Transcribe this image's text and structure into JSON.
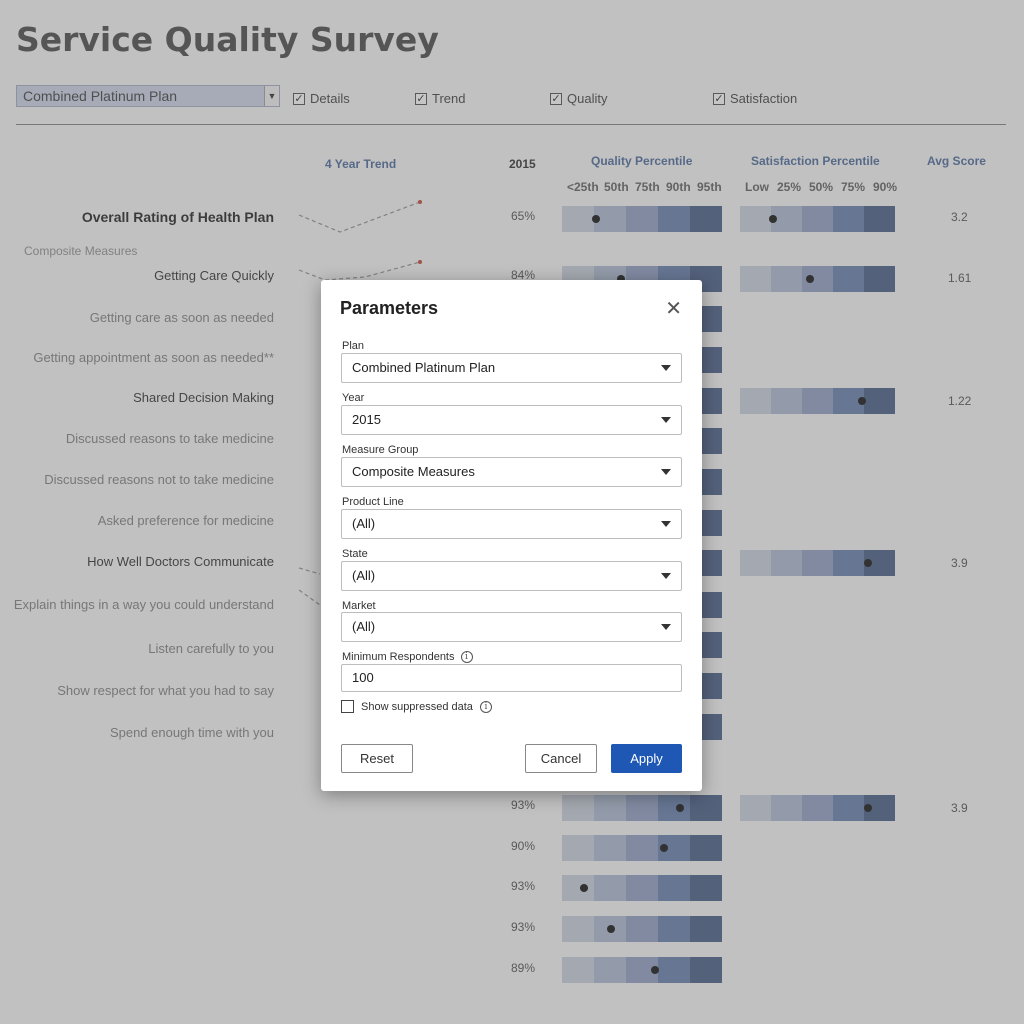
{
  "dashboard": {
    "title": "Service Quality Survey",
    "plan_select_value": "Combined Platinum Plan",
    "checkboxes": [
      "Details",
      "Trend",
      "Quality",
      "Satisfaction"
    ],
    "headers": {
      "trend": "4 Year Trend",
      "year": "2015",
      "quality": "Quality Percentile",
      "satisfaction": "Satisfaction Percentile",
      "avg": "Avg Score"
    },
    "quality_ticks": [
      "<25th",
      "50th",
      "75th",
      "90th",
      "95th"
    ],
    "satisfaction_ticks": [
      "Low",
      "25%",
      "50%",
      "75%",
      "90%"
    ],
    "group_label": "Composite Measures",
    "rows": [
      {
        "label": "Overall Rating of Health Plan",
        "pct": "65%",
        "avg": "3.2"
      },
      {
        "label": "Getting Care Quickly",
        "pct": "84%",
        "avg": "1.61"
      },
      {
        "label": "Getting care as soon as needed",
        "pct": "",
        "avg": ""
      },
      {
        "label": "Getting appointment as soon as needed**",
        "pct": "",
        "avg": ""
      },
      {
        "label": "Shared Decision Making",
        "pct": "",
        "avg": "1.22"
      },
      {
        "label": "Discussed reasons to take medicine",
        "pct": "",
        "avg": ""
      },
      {
        "label": "Discussed reasons not to take medicine",
        "pct": "",
        "avg": ""
      },
      {
        "label": "Asked preference for medicine",
        "pct": "",
        "avg": ""
      },
      {
        "label": "How Well Doctors Communicate",
        "pct": "",
        "avg": "3.9"
      },
      {
        "label": "Explain things in a way you could understand",
        "pct": "",
        "avg": ""
      },
      {
        "label": "Listen carefully to you",
        "pct": "",
        "avg": ""
      },
      {
        "label": "Show respect for what you had to say",
        "pct": "",
        "avg": ""
      },
      {
        "label": "Spend enough time with you",
        "pct": "",
        "avg": ""
      },
      {
        "label": "",
        "pct": "93%",
        "avg": "3.9"
      },
      {
        "label": "",
        "pct": "90%",
        "avg": ""
      },
      {
        "label": "",
        "pct": "93%",
        "avg": ""
      },
      {
        "label": "",
        "pct": "93%",
        "avg": ""
      },
      {
        "label": "",
        "pct": "89%",
        "avg": ""
      }
    ]
  },
  "modal": {
    "title": "Parameters",
    "fields": [
      {
        "label": "Plan",
        "value": "Combined Platinum Plan"
      },
      {
        "label": "Year",
        "value": "2015"
      },
      {
        "label": "Measure Group",
        "value": "Composite Measures"
      },
      {
        "label": "Product Line",
        "value": "(All)"
      },
      {
        "label": "State",
        "value": "(All)"
      },
      {
        "label": "Market",
        "value": "(All)"
      }
    ],
    "min_respondents": {
      "label": "Minimum Respondents",
      "value": "100"
    },
    "suppress_label": "Show suppressed data",
    "buttons": {
      "reset": "Reset",
      "cancel": "Cancel",
      "apply": "Apply"
    }
  },
  "colors": {
    "accent": "#1f57b5",
    "strip_shades": [
      "#c5cbda",
      "#a8b5d0",
      "#8898bf",
      "#5b75a8",
      "#3b527f"
    ]
  }
}
